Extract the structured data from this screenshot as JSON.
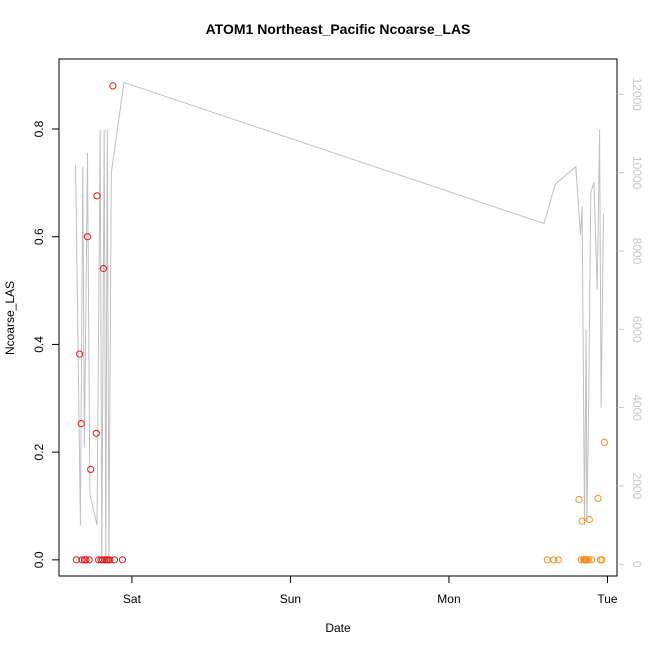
{
  "chart_data": {
    "type": "scatter",
    "title": "ATOM1 Northeast_Pacific Ncoarse_LAS",
    "xlabel": "Date",
    "ylabel": "Ncoarse_LAS",
    "x_ticks": [
      {
        "label": "Sat",
        "value": 0.0
      },
      {
        "label": "Sun",
        "value": 1.0
      },
      {
        "label": "Mon",
        "value": 2.0
      },
      {
        "label": "Tue",
        "value": 3.0
      }
    ],
    "xlim": [
      -0.46,
      3.06
    ],
    "ylim": [
      -0.03,
      0.93
    ],
    "y_ticks": [
      "0.0",
      "0.2",
      "0.4",
      "0.6",
      "0.8"
    ],
    "y2_ticks": [
      "0",
      "2000",
      "4000",
      "6000",
      "8000",
      "10000",
      "12000"
    ],
    "y2lim": [
      -300,
      12900
    ],
    "grid": false,
    "colors": {
      "series_red": "#e41a1c",
      "series_orange": "#ff8c1a",
      "line": "#c0c0c0",
      "right_axis": "#c8c8c8",
      "axes": "#000000"
    },
    "series": [
      {
        "color": "red",
        "points": [
          [
            -0.35,
            0.0
          ],
          [
            -0.33,
            0.382
          ],
          [
            -0.32,
            0.253
          ],
          [
            -0.315,
            0.0
          ],
          [
            -0.3,
            0.0
          ],
          [
            -0.29,
            0.0
          ],
          [
            -0.28,
            0.6
          ],
          [
            -0.27,
            0.0
          ],
          [
            -0.26,
            0.168
          ],
          [
            -0.225,
            0.235
          ],
          [
            -0.22,
            0.676
          ],
          [
            -0.21,
            0.0
          ],
          [
            -0.195,
            0.0
          ],
          [
            -0.185,
            0.0
          ],
          [
            -0.18,
            0.541
          ],
          [
            -0.17,
            0.0
          ],
          [
            -0.16,
            0.0
          ],
          [
            -0.15,
            0.0
          ],
          [
            -0.14,
            0.0
          ],
          [
            -0.12,
            0.88
          ],
          [
            -0.11,
            0.0
          ],
          [
            -0.06,
            0.0
          ]
        ]
      },
      {
        "color": "orange",
        "points": [
          [
            2.62,
            0.0
          ],
          [
            2.66,
            0.0
          ],
          [
            2.69,
            0.0
          ],
          [
            2.82,
            0.112
          ],
          [
            2.835,
            0.0
          ],
          [
            2.84,
            0.072
          ],
          [
            2.85,
            0.0
          ],
          [
            2.855,
            0.0
          ],
          [
            2.86,
            0.0
          ],
          [
            2.865,
            0.0
          ],
          [
            2.87,
            0.0
          ],
          [
            2.88,
            0.0
          ],
          [
            2.885,
            0.075
          ],
          [
            2.9,
            0.0
          ],
          [
            2.94,
            0.114
          ],
          [
            2.955,
            0.0
          ],
          [
            2.965,
            0.0
          ],
          [
            2.98,
            0.218
          ]
        ]
      }
    ],
    "line_series": {
      "axis": "right",
      "points": [
        [
          -0.355,
          10200
        ],
        [
          -0.325,
          1000
        ],
        [
          -0.31,
          10150
        ],
        [
          -0.3,
          3000
        ],
        [
          -0.28,
          10500
        ],
        [
          -0.265,
          1800
        ],
        [
          -0.22,
          1000
        ],
        [
          -0.2,
          11100
        ],
        [
          -0.19,
          100
        ],
        [
          -0.175,
          11100
        ],
        [
          -0.165,
          100
        ],
        [
          -0.155,
          11100
        ],
        [
          -0.145,
          100
        ],
        [
          -0.13,
          10000
        ],
        [
          -0.05,
          12300
        ],
        [
          2.6,
          8700
        ],
        [
          2.67,
          9700
        ],
        [
          2.8,
          10150
        ],
        [
          2.83,
          8400
        ],
        [
          2.84,
          9150
        ],
        [
          2.855,
          1000
        ],
        [
          2.865,
          6000
        ],
        [
          2.87,
          1100
        ],
        [
          2.88,
          3700
        ],
        [
          2.895,
          9500
        ],
        [
          2.915,
          9750
        ],
        [
          2.935,
          7000
        ],
        [
          2.95,
          11100
        ],
        [
          2.96,
          4000
        ],
        [
          2.975,
          8950
        ]
      ]
    }
  }
}
